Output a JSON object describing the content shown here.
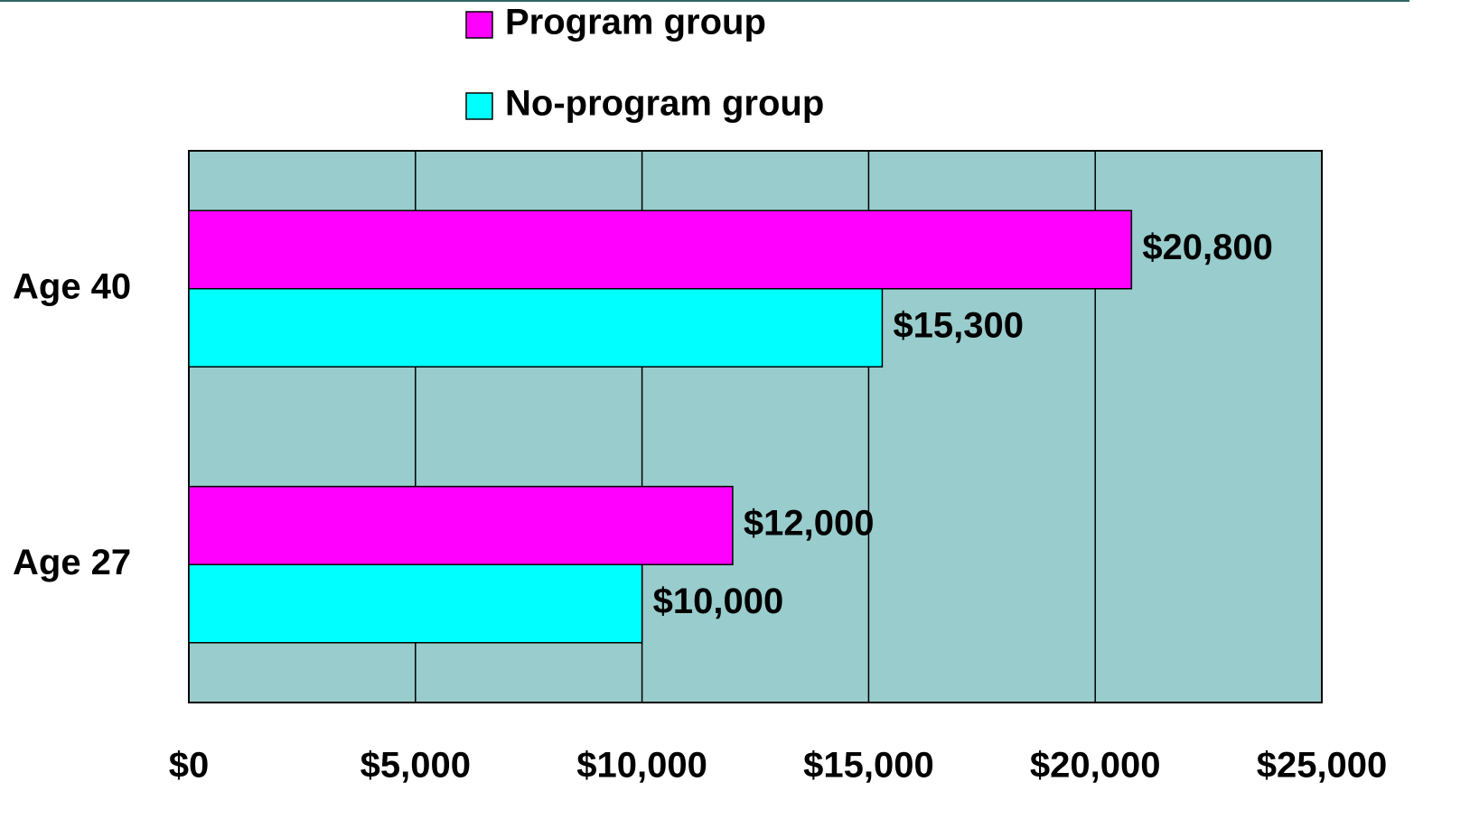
{
  "chart_data": {
    "type": "bar",
    "orientation": "horizontal",
    "categories": [
      "Age 40",
      "Age 27"
    ],
    "series": [
      {
        "name": "Program group",
        "color": "#ff00ff",
        "values": [
          20800,
          12000
        ],
        "value_labels": [
          "$20,800",
          "$12,000"
        ]
      },
      {
        "name": "No-program group",
        "color": "#00ffff",
        "values": [
          15300,
          10000
        ],
        "value_labels": [
          "$15,300",
          "$10,000"
        ]
      }
    ],
    "xlim": [
      0,
      25000
    ],
    "xticks": [
      {
        "value": 0,
        "label": "$0"
      },
      {
        "value": 5000,
        "label": "$5,000"
      },
      {
        "value": 10000,
        "label": "$10,000"
      },
      {
        "value": 15000,
        "label": "$15,000"
      },
      {
        "value": 20000,
        "label": "$20,000"
      },
      {
        "value": 25000,
        "label": "$25,000"
      }
    ],
    "grid": true,
    "plot_background": "#99cccc"
  }
}
